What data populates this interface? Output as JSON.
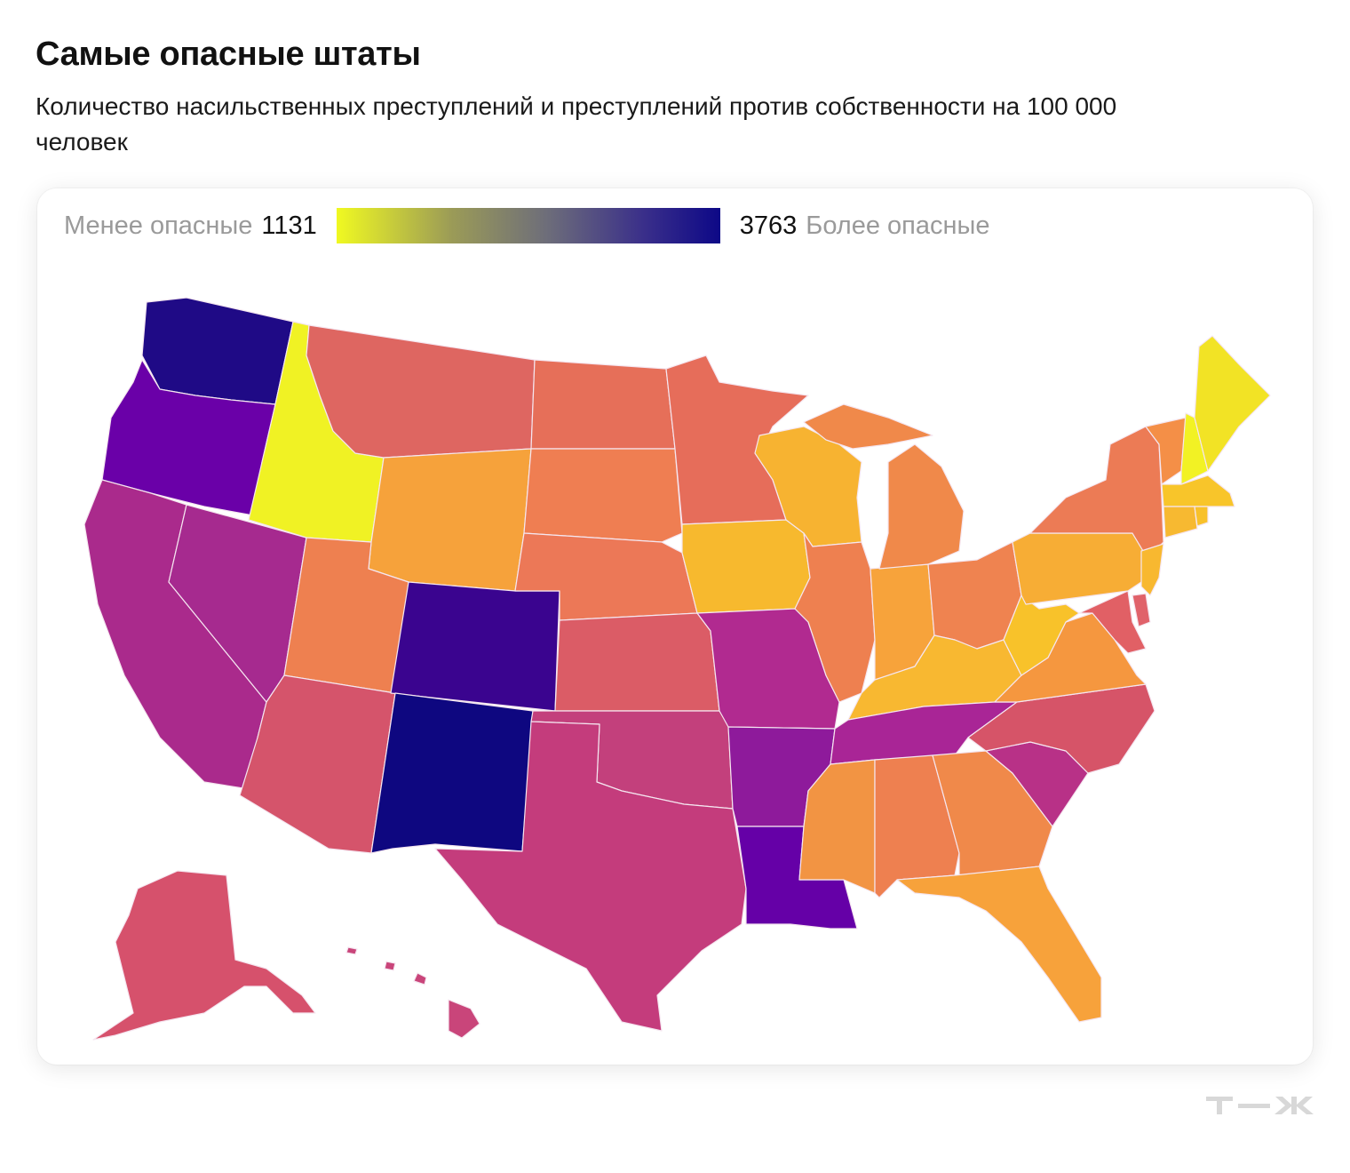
{
  "header": {
    "title": "Самые опасные штаты",
    "subtitle": "Количество насильственных преступлений и преступлений против собственности на 100 000 человек"
  },
  "legend": {
    "low_label": "Менее опасные",
    "low_value": "1131",
    "high_value": "3763",
    "high_label": "Более опасные",
    "color_low": "#f0f921",
    "color_high": "#0d0887"
  },
  "map": {
    "type": "choropleth",
    "scale_min": 1131,
    "scale_max": 3763,
    "colors": {
      "WA": "#1f0a86",
      "OR": "#6a00a8",
      "CA": "#aa2a8c",
      "NV": "#a62a8f",
      "ID": "#f0f224",
      "MT": "#de6661",
      "WY": "#f6a23b",
      "UT": "#ee8050",
      "AZ": "#d5546b",
      "CO": "#3a048f",
      "NM": "#0e0780",
      "ND": "#e66f59",
      "SD": "#ef7e52",
      "NE": "#ec7857",
      "KS": "#db5c66",
      "OK": "#c3407c",
      "TX": "#c43c7c",
      "MN": "#e66d5a",
      "IA": "#f7b92e",
      "MO": "#b12a90",
      "AR": "#8e1a9b",
      "LA": "#6500a7",
      "WI": "#f7b331",
      "IL": "#ee8050",
      "MI": "#f0894a",
      "IN": "#f7a33b",
      "OH": "#ef8350",
      "KY": "#f8b831",
      "TN": "#a92596",
      "MS": "#f29443",
      "AL": "#ee8050",
      "GA": "#f0894a",
      "FL": "#f7a23b",
      "SC": "#b83187",
      "NC": "#d65468",
      "VA": "#f5973f",
      "WV": "#f8c22a",
      "PA": "#f7ad35",
      "NY": "#ec7b55",
      "VT": "#f48f47",
      "NH": "#f2f224",
      "ME": "#f2e325",
      "MA": "#f8c52a",
      "CT": "#f7b931",
      "RI": "#f8c12a",
      "NJ": "#f8b830",
      "DE": "#e0626a",
      "MD": "#e16065",
      "AK": "#d6516c",
      "HI": "#c9457a"
    }
  }
}
